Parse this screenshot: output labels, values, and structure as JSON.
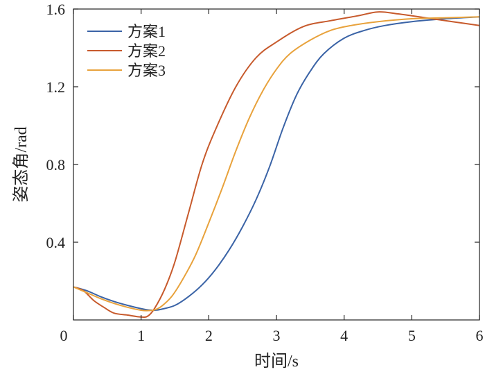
{
  "chart_data": {
    "type": "line",
    "xlabel": "时间/s",
    "ylabel": "姿态角/rad",
    "xlim": [
      0,
      6
    ],
    "ylim": [
      0,
      1.6
    ],
    "xticks": [
      0,
      1,
      2,
      3,
      4,
      5,
      6
    ],
    "yticks": [
      0.4,
      0.8,
      1.2,
      1.6
    ],
    "ytick_labels": [
      "0.4",
      "0.8",
      "1.2",
      "1.6"
    ],
    "grid": false,
    "legend_position": "top-left",
    "series": [
      {
        "name": "方案1",
        "color": "#3a63a6",
        "x": [
          0,
          0.2,
          0.4,
          0.6,
          0.8,
          1.0,
          1.1,
          1.2,
          1.3,
          1.5,
          1.7,
          1.9,
          2.1,
          2.3,
          2.5,
          2.7,
          2.9,
          3.1,
          3.3,
          3.5,
          3.7,
          4.0,
          4.3,
          4.6,
          5.0,
          5.5,
          6.0
        ],
        "y": [
          0.17,
          0.15,
          0.12,
          0.095,
          0.075,
          0.058,
          0.052,
          0.05,
          0.055,
          0.075,
          0.12,
          0.18,
          0.26,
          0.36,
          0.48,
          0.62,
          0.79,
          0.99,
          1.16,
          1.28,
          1.37,
          1.45,
          1.49,
          1.515,
          1.535,
          1.55,
          1.56
        ]
      },
      {
        "name": "方案2",
        "color": "#c75a2c",
        "x": [
          0,
          0.15,
          0.3,
          0.45,
          0.6,
          0.8,
          1.0,
          1.1,
          1.2,
          1.35,
          1.5,
          1.7,
          1.9,
          2.1,
          2.4,
          2.7,
          3.0,
          3.4,
          3.8,
          4.2,
          4.5,
          4.8,
          5.2,
          5.6,
          6.0
        ],
        "y": [
          0.17,
          0.15,
          0.1,
          0.065,
          0.035,
          0.025,
          0.015,
          0.02,
          0.06,
          0.16,
          0.3,
          0.55,
          0.8,
          0.98,
          1.2,
          1.35,
          1.43,
          1.51,
          1.54,
          1.565,
          1.585,
          1.575,
          1.555,
          1.535,
          1.515
        ]
      },
      {
        "name": "方案3",
        "color": "#e8a23c",
        "x": [
          0,
          0.2,
          0.4,
          0.6,
          0.8,
          1.0,
          1.1,
          1.2,
          1.3,
          1.45,
          1.6,
          1.8,
          2.0,
          2.2,
          2.4,
          2.6,
          2.8,
          3.0,
          3.2,
          3.5,
          3.8,
          4.1,
          4.5,
          5.0,
          5.5,
          6.0
        ],
        "y": [
          0.17,
          0.14,
          0.11,
          0.085,
          0.065,
          0.05,
          0.048,
          0.052,
          0.07,
          0.12,
          0.2,
          0.33,
          0.5,
          0.68,
          0.87,
          1.04,
          1.18,
          1.29,
          1.37,
          1.44,
          1.49,
          1.515,
          1.535,
          1.55,
          1.555,
          1.56
        ]
      }
    ],
    "origin_label": "0"
  }
}
